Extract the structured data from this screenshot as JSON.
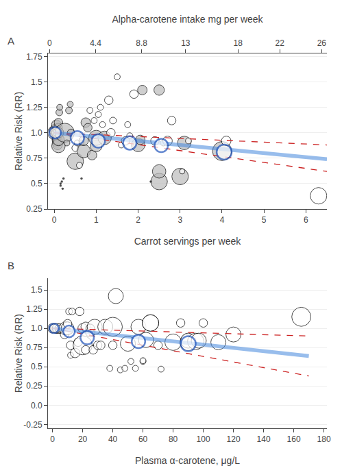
{
  "chart_data": [
    {
      "type": "scatter",
      "title": "A",
      "xlabel": "Carrot servings per week",
      "xlim": [
        -0.15,
        6.5
      ],
      "xticks": [
        0,
        1,
        2,
        3,
        4,
        5,
        6
      ],
      "x2label": "Alpha-carotene intake mg per week",
      "x2lim": [
        -0.15,
        26.5
      ],
      "x2ticks": [
        0,
        4.4,
        8.8,
        13,
        18,
        22,
        26
      ],
      "ylabel": "Relative Risk (RR)",
      "ylim": [
        0.25,
        1.78
      ],
      "yticks": [
        0.25,
        0.5,
        0.75,
        {
          "value": 1.0,
          "label": "1.0"
        },
        1.25,
        1.5,
        1.75
      ],
      "grid": "y",
      "series": [
        {
          "type": "scatter",
          "color": "black",
          "x": [
            0.0,
            0.0,
            0.0,
            0.02,
            0.03,
            0.03,
            0.04,
            0.04,
            0.05,
            0.05,
            0.05,
            0.06,
            0.06,
            0.07,
            0.08,
            0.08,
            0.09,
            0.09,
            0.1,
            0.1,
            0.1,
            0.1,
            0.12,
            0.13,
            0.15,
            0.15,
            0.18,
            0.2,
            0.22,
            0.25,
            0.3,
            0.35,
            0.38,
            0.4,
            0.5,
            0.5,
            0.55,
            0.6,
            0.65,
            0.65,
            0.7,
            0.7,
            0.75,
            0.8,
            0.85,
            0.9,
            0.95,
            1.0,
            1.0,
            1.05,
            1.1,
            1.15,
            1.2,
            1.3,
            1.35,
            1.4,
            1.5,
            1.6,
            1.7,
            1.75,
            1.8,
            1.9,
            2.0,
            2.05,
            2.1,
            2.3,
            2.4,
            2.5,
            2.5,
            2.5,
            2.6,
            2.7,
            2.8,
            3.0,
            3.05,
            3.1,
            3.2,
            4.0,
            4.1,
            6.3
          ],
          "values": [
            1.0,
            1.02,
            1.05,
            0.98,
            0.95,
            1.0,
            0.97,
            1.05,
            0.93,
            1.0,
            1.08,
            0.9,
            1.0,
            0.95,
            0.88,
            1.0,
            0.92,
            1.05,
            0.87,
            0.93,
            1.0,
            1.1,
            1.2,
            1.25,
            0.48,
            0.5,
            0.52,
            0.45,
            0.55,
            1.0,
            0.9,
            1.22,
            1.28,
            1.0,
            0.72,
            0.85,
            0.9,
            0.68,
            0.55,
            0.9,
            0.82,
            0.92,
            1.1,
            1.05,
            1.22,
            0.78,
            1.12,
            0.87,
            0.95,
            1.18,
            1.25,
            1.08,
            0.95,
            1.32,
            1.0,
            1.12,
            1.55,
            0.88,
            0.92,
            1.08,
            0.97,
            1.38,
            0.88,
            0.93,
            1.42,
            0.52,
            0.92,
            0.52,
            0.62,
            1.42,
            0.9,
            0.92,
            1.12,
            0.57,
            0.62,
            0.9,
            0.92,
            0.82,
            0.92,
            0.38
          ],
          "sizes": [
            200,
            100,
            50,
            60,
            40,
            60,
            40,
            60,
            80,
            150,
            100,
            80,
            120,
            60,
            100,
            150,
            80,
            80,
            200,
            150,
            120,
            80,
            50,
            40,
            20,
            20,
            20,
            20,
            20,
            400,
            40,
            50,
            40,
            60,
            300,
            50,
            40,
            40,
            20,
            30,
            200,
            100,
            100,
            80,
            40,
            100,
            40,
            150,
            250,
            40,
            40,
            40,
            200,
            80,
            80,
            50,
            40,
            40,
            80,
            40,
            40,
            80,
            200,
            100,
            100,
            20,
            80,
            300,
            200,
            120,
            40,
            100,
            80,
            300,
            30,
            200,
            40,
            400,
            100,
            300
          ],
          "colors": [
            "#bbbbbb",
            "#bbbbbb",
            "#bbbbbb",
            "#bbbbbb",
            "#bbbbbb",
            "#bbbbbb",
            "#bbbbbb",
            "#bbbbbb",
            "#bbbbbb",
            "#bbbbbb",
            "#bbbbbb",
            "#bbbbbb",
            "#bbbbbb",
            "#bbbbbb",
            "#bbbbbb",
            "#bbbbbb",
            "#bbbbbb",
            "#bbbbbb",
            "#bbbbbb",
            "#bbbbbb",
            "#bbbbbb",
            "#bbbbbb",
            "#bbbbbb",
            "#bbbbbb",
            "black",
            "black",
            "black",
            "black",
            "black",
            "#bbbbbb",
            "#bbbbbb",
            "#bbbbbb",
            "#bbbbbb",
            "#bbbbbb",
            "#bbbbbb",
            "white",
            "white",
            "white",
            "black",
            "white",
            "#bbbbbb",
            "#bbbbbb",
            "#bbbbbb",
            "#bbbbbb",
            "white",
            "#bbbbbb",
            "white",
            "#bbbbbb",
            "#bbbbbb",
            "white",
            "white",
            "white",
            "#bbbbbb",
            "white",
            "white",
            "white",
            "white",
            "white",
            "white",
            "white",
            "white",
            "white",
            "#bbbbbb",
            "#bbbbbb",
            "#bbbbbb",
            "black",
            "white",
            "#bbbbbb",
            "#bbbbbb",
            "#bbbbbb",
            "white",
            "white",
            "white",
            "#bbbbbb",
            "white",
            "#bbbbbb",
            "white",
            "#bbbbbb",
            "white",
            "white"
          ]
        },
        {
          "type": "line",
          "color": "#cc2222",
          "line_style": "dashed",
          "x": [
            0.0,
            6.5
          ],
          "values": [
            1.0,
            0.88
          ]
        },
        {
          "type": "line",
          "color": "#cc2222",
          "line_style": "dashed",
          "x": [
            0.0,
            6.5
          ],
          "values": [
            1.0,
            0.62
          ]
        },
        {
          "type": "line",
          "color": "#4488dd",
          "line_style": "solid",
          "x": [
            0.0,
            6.5
          ],
          "values": [
            1.0,
            0.74
          ]
        },
        {
          "type": "scatter",
          "color": "#2255bb",
          "marker": "open",
          "x": [
            0.02,
            0.55,
            1.05,
            1.8,
            2.55,
            4.05
          ],
          "values": [
            1.0,
            0.95,
            0.92,
            0.9,
            0.875,
            0.81
          ],
          "sizes": [
            150,
            200,
            200,
            200,
            200,
            250
          ]
        }
      ]
    },
    {
      "type": "scatter",
      "title": "B",
      "xlabel": "Plasma α-carotene, μg/L",
      "xlim": [
        -3,
        182
      ],
      "xticks": [
        0,
        20,
        40,
        60,
        80,
        100,
        120,
        140,
        160,
        180
      ],
      "ylabel": "Relative Risk (RR)",
      "ylim": [
        -0.3,
        1.65
      ],
      "yticks": [
        -0.25,
        {
          "value": 0.0,
          "label": "0.0"
        },
        0.25,
        0.5,
        0.75,
        {
          "value": 1.0,
          "label": "1.0"
        },
        1.25,
        1.5
      ],
      "grid": "y",
      "series": [
        {
          "type": "scatter",
          "color": "black",
          "x": [
            0,
            0,
            0,
            1,
            1,
            1,
            2,
            2,
            2,
            3,
            3,
            4,
            4,
            5,
            5,
            5,
            8,
            9,
            10,
            10,
            11,
            12,
            12,
            13,
            15,
            17,
            18,
            20,
            20,
            22,
            22,
            25,
            25,
            27,
            28,
            30,
            32,
            35,
            38,
            40,
            40,
            42,
            45,
            48,
            50,
            52,
            55,
            57,
            60,
            60,
            62,
            65,
            65,
            70,
            72,
            80,
            85,
            90,
            90,
            95,
            97,
            100,
            110,
            120,
            165
          ],
          "values": [
            1.0,
            1.0,
            1.0,
            1.0,
            1.0,
            1.0,
            0.98,
            1.0,
            1.0,
            0.98,
            1.0,
            0.98,
            1.0,
            0.98,
            1.0,
            1.0,
            0.92,
            1.0,
            1.0,
            1.06,
            1.22,
            0.65,
            0.78,
            1.22,
            0.68,
            0.82,
            1.22,
            0.78,
            1.0,
            0.72,
            1.02,
            0.95,
            1.0,
            0.72,
            1.02,
            0.78,
            0.78,
            1.02,
            0.48,
            0.78,
            1.02,
            1.42,
            0.46,
            0.48,
            0.8,
            0.57,
            0.48,
            1.02,
            0.57,
            0.58,
            0.85,
            1.07,
            1.07,
            0.78,
            0.47,
            0.82,
            1.07,
            0.82,
            0.84,
            0.83,
            0.84,
            1.07,
            0.82,
            0.92,
            1.15
          ],
          "sizes": [
            50,
            100,
            50,
            80,
            50,
            80,
            50,
            100,
            50,
            50,
            100,
            50,
            50,
            50,
            100,
            50,
            80,
            200,
            180,
            80,
            50,
            40,
            80,
            50,
            100,
            80,
            80,
            400,
            100,
            80,
            100,
            100,
            80,
            80,
            250,
            80,
            80,
            250,
            40,
            80,
            400,
            250,
            40,
            40,
            250,
            40,
            40,
            250,
            40,
            40,
            250,
            300,
            300,
            80,
            40,
            300,
            80,
            300,
            250,
            300,
            250,
            80,
            250,
            250,
            400
          ],
          "colors": [
            "white",
            "white",
            "white",
            "white",
            "white",
            "white",
            "white",
            "white",
            "white",
            "white",
            "white",
            "white",
            "white",
            "white",
            "white",
            "white",
            "white",
            "white",
            "white",
            "white",
            "white",
            "white",
            "white",
            "white",
            "white",
            "white",
            "white",
            "white",
            "white",
            "white",
            "white",
            "white",
            "white",
            "white",
            "white",
            "white",
            "white",
            "white",
            "white",
            "white",
            "white",
            "white",
            "white",
            "white",
            "white",
            "white",
            "white",
            "white",
            "white",
            "white",
            "white",
            "white",
            "white",
            "white",
            "white",
            "white",
            "white",
            "white",
            "white",
            "white",
            "white",
            "white",
            "white",
            "white",
            "white"
          ]
        },
        {
          "type": "line",
          "color": "#cc2222",
          "line_style": "dashed",
          "x": [
            0,
            170
          ],
          "values": [
            1.0,
            0.9
          ]
        },
        {
          "type": "line",
          "color": "#cc2222",
          "line_style": "dashed",
          "x": [
            0,
            170
          ],
          "values": [
            1.0,
            0.38
          ]
        },
        {
          "type": "line",
          "color": "#4488dd",
          "line_style": "solid",
          "x": [
            0,
            170
          ],
          "values": [
            1.0,
            0.64
          ]
        },
        {
          "type": "scatter",
          "color": "#2255bb",
          "marker": "open",
          "x": [
            1,
            11,
            23,
            57,
            90
          ],
          "values": [
            1.0,
            0.96,
            0.88,
            0.83,
            0.8
          ],
          "sizes": [
            100,
            150,
            200,
            200,
            250
          ]
        }
      ]
    }
  ]
}
